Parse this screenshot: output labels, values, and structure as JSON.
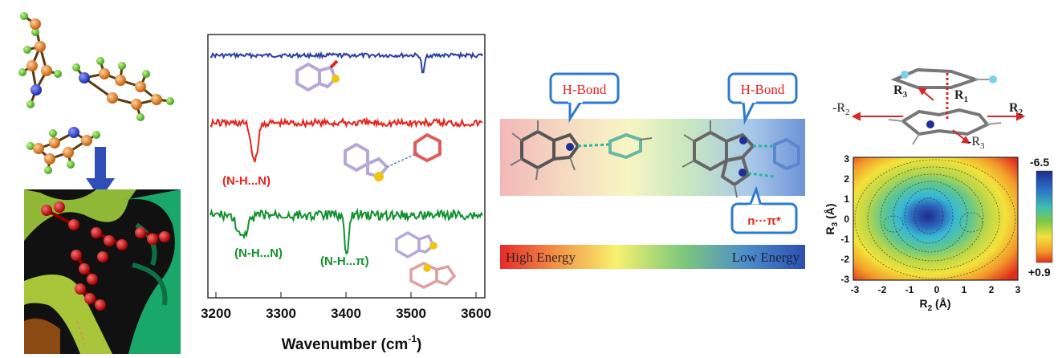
{
  "panel_ir": {
    "xlabel_main": "Wavenumber (cm",
    "xlabel_sup": "-1",
    "xlabel_end": ")",
    "ticks": [
      "3200",
      "3300",
      "3400",
      "3500",
      "3600"
    ],
    "labels": [
      "(N-H...N)",
      "(N-H...N)",
      "(N-H...π)"
    ],
    "colors": {
      "blue": "#2a3fa6",
      "red": "#e8231c",
      "green": "#12922e"
    }
  },
  "panel_energy": {
    "callouts": [
      "H-Bond",
      "H-Bond",
      "n···π*"
    ],
    "bar_left": "High Energy",
    "bar_right": "Low Energy"
  },
  "panel_pes": {
    "vectors": {
      "r1": "R",
      "r1_sub": "1",
      "r2": "R",
      "r2_sub": "2",
      "r3": "R",
      "r3_sub": "3",
      "neg_r2": "-R",
      "neg_r2_sub": "2",
      "neg_r3": "-R",
      "neg_r3_sub": "3"
    },
    "ylabel": "R",
    "ylabel_sub": "3",
    "ylabel_end": " (Å)",
    "xlabel": "R",
    "xlabel_sub": "2",
    "xlabel_end": " (Å)",
    "xticks": [
      "-3",
      "-2",
      "-1",
      "0",
      "1",
      "2",
      "3"
    ],
    "yticks": [
      "3",
      "2",
      "1",
      "0",
      "-1",
      "-2",
      "-3"
    ],
    "scale_top": "-6.5",
    "scale_bottom": "+0.9"
  }
}
